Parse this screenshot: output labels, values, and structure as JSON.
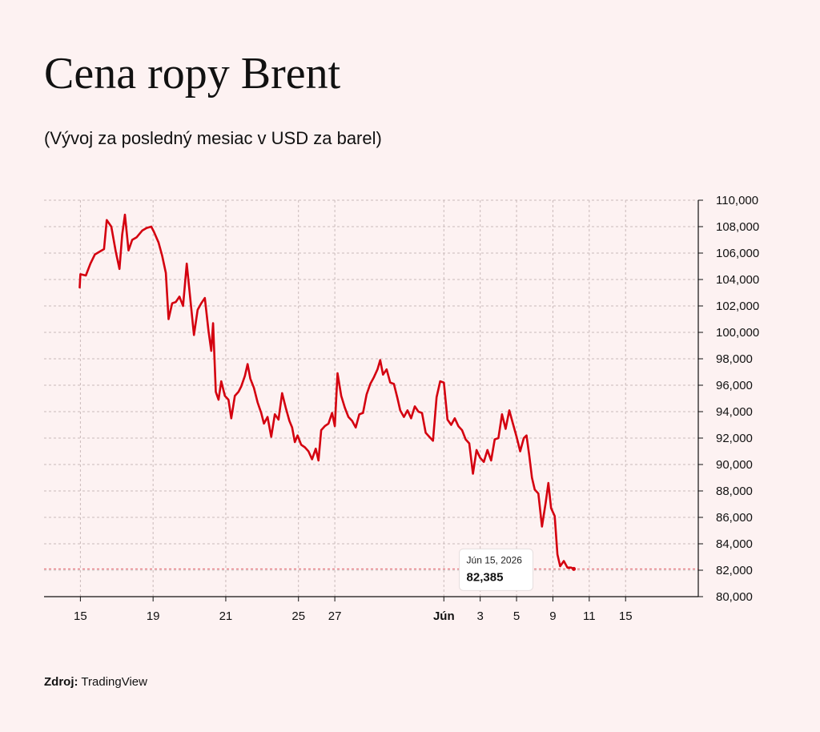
{
  "header": {
    "title": "Cena ropy Brent",
    "subtitle": "(Vývoj za posledný mesiac v USD za barel)"
  },
  "source": {
    "label": "Zdroj:",
    "value": "TradingView"
  },
  "tooltip": {
    "date": "Jún 15, 2026",
    "value": "82,385"
  },
  "colors": {
    "line": "#d4000f",
    "background": "#fdf2f2",
    "grid": "#c9b9b9"
  },
  "chart_data": {
    "type": "line",
    "title": "Cena ropy Brent",
    "subtitle": "(Vývoj za posledný mesiac v USD za barel)",
    "y_axis_position": "right",
    "ylim": [
      80000,
      110000
    ],
    "y_ticks": [
      80000,
      82000,
      84000,
      86000,
      88000,
      90000,
      92000,
      94000,
      96000,
      98000,
      100000,
      102000,
      104000,
      106000,
      108000,
      110000
    ],
    "y_tick_labels": [
      "80,000",
      "82,000",
      "84,000",
      "86,000",
      "88,000",
      "90,000",
      "92,000",
      "94,000",
      "96,000",
      "98,000",
      "100,000",
      "102,000",
      "104,000",
      "106,000",
      "108,000",
      "110,000"
    ],
    "xlim": [
      -1,
      35
    ],
    "x_ticks": [
      1,
      5,
      9,
      13,
      15,
      21,
      23,
      25,
      27,
      29,
      31
    ],
    "x_tick_labels": [
      "15",
      "19",
      "21",
      "25",
      "27",
      "Jún",
      "3",
      "5",
      "9",
      "11",
      "15"
    ],
    "grid": true,
    "series": [
      {
        "values": [
          [
            0.96,
            103400
          ],
          [
            1.0,
            104400
          ],
          [
            1.3,
            104300
          ],
          [
            1.55,
            105200
          ],
          [
            1.8,
            105900
          ],
          [
            2.05,
            106100
          ],
          [
            2.3,
            106300
          ],
          [
            2.45,
            108500
          ],
          [
            2.7,
            108000
          ],
          [
            2.95,
            106100
          ],
          [
            3.15,
            104800
          ],
          [
            3.3,
            107400
          ],
          [
            3.45,
            108900
          ],
          [
            3.65,
            106200
          ],
          [
            3.85,
            107000
          ],
          [
            4.1,
            107200
          ],
          [
            4.4,
            107700
          ],
          [
            4.65,
            107900
          ],
          [
            4.9,
            108000
          ],
          [
            5.05,
            107600
          ],
          [
            5.3,
            106800
          ],
          [
            5.5,
            105800
          ],
          [
            5.7,
            104500
          ],
          [
            5.85,
            101000
          ],
          [
            6.05,
            102200
          ],
          [
            6.25,
            102300
          ],
          [
            6.45,
            102700
          ],
          [
            6.65,
            102000
          ],
          [
            6.85,
            105200
          ],
          [
            7.05,
            102500
          ],
          [
            7.25,
            99800
          ],
          [
            7.45,
            101700
          ],
          [
            7.65,
            102200
          ],
          [
            7.85,
            102600
          ],
          [
            8.05,
            100100
          ],
          [
            8.2,
            98600
          ],
          [
            8.3,
            100700
          ],
          [
            8.45,
            95500
          ],
          [
            8.6,
            94900
          ],
          [
            8.75,
            96300
          ],
          [
            8.95,
            95200
          ],
          [
            9.15,
            94900
          ],
          [
            9.3,
            93500
          ],
          [
            9.5,
            95200
          ],
          [
            9.7,
            95500
          ],
          [
            9.85,
            95900
          ],
          [
            10.05,
            96700
          ],
          [
            10.2,
            97600
          ],
          [
            10.35,
            96500
          ],
          [
            10.55,
            95800
          ],
          [
            10.75,
            94700
          ],
          [
            10.95,
            93900
          ],
          [
            11.1,
            93100
          ],
          [
            11.3,
            93600
          ],
          [
            11.5,
            92100
          ],
          [
            11.7,
            93800
          ],
          [
            11.9,
            93400
          ],
          [
            12.1,
            95400
          ],
          [
            12.3,
            94300
          ],
          [
            12.5,
            93300
          ],
          [
            12.65,
            92800
          ],
          [
            12.8,
            91700
          ],
          [
            12.95,
            92200
          ],
          [
            13.15,
            91500
          ],
          [
            13.35,
            91300
          ],
          [
            13.55,
            91000
          ],
          [
            13.75,
            90400
          ],
          [
            13.95,
            91200
          ],
          [
            14.1,
            90300
          ],
          [
            14.25,
            92600
          ],
          [
            14.45,
            92900
          ],
          [
            14.65,
            93100
          ],
          [
            14.85,
            93900
          ],
          [
            15.0,
            92900
          ],
          [
            15.15,
            96900
          ],
          [
            15.35,
            95200
          ],
          [
            15.55,
            94300
          ],
          [
            15.75,
            93600
          ],
          [
            15.95,
            93300
          ],
          [
            16.15,
            92800
          ],
          [
            16.35,
            93800
          ],
          [
            16.55,
            93900
          ],
          [
            16.75,
            95300
          ],
          [
            16.95,
            96100
          ],
          [
            17.15,
            96600
          ],
          [
            17.35,
            97200
          ],
          [
            17.5,
            97900
          ],
          [
            17.65,
            96800
          ],
          [
            17.85,
            97200
          ],
          [
            18.05,
            96200
          ],
          [
            18.25,
            96100
          ],
          [
            18.45,
            95000
          ],
          [
            18.6,
            94100
          ],
          [
            18.8,
            93600
          ],
          [
            19.0,
            94100
          ],
          [
            19.2,
            93500
          ],
          [
            19.4,
            94400
          ],
          [
            19.6,
            94000
          ],
          [
            19.8,
            93900
          ],
          [
            20.0,
            92400
          ],
          [
            20.2,
            92100
          ],
          [
            20.4,
            91800
          ],
          [
            20.6,
            95100
          ],
          [
            20.8,
            96300
          ],
          [
            21.0,
            96200
          ],
          [
            21.2,
            93400
          ],
          [
            21.4,
            93000
          ],
          [
            21.6,
            93500
          ],
          [
            21.8,
            92900
          ],
          [
            22.0,
            92600
          ],
          [
            22.2,
            91900
          ],
          [
            22.4,
            91600
          ],
          [
            22.6,
            89300
          ],
          [
            22.8,
            91100
          ],
          [
            23.0,
            90500
          ],
          [
            23.2,
            90200
          ],
          [
            23.4,
            91100
          ],
          [
            23.6,
            90300
          ],
          [
            23.8,
            91900
          ],
          [
            24.0,
            92000
          ],
          [
            24.2,
            93800
          ],
          [
            24.4,
            92700
          ],
          [
            24.6,
            94100
          ],
          [
            24.8,
            93100
          ],
          [
            25.0,
            92100
          ],
          [
            25.2,
            91000
          ],
          [
            25.4,
            92000
          ],
          [
            25.55,
            92200
          ],
          [
            25.7,
            90700
          ],
          [
            25.85,
            89000
          ],
          [
            26.0,
            88100
          ],
          [
            26.2,
            87800
          ],
          [
            26.4,
            85300
          ],
          [
            26.6,
            87100
          ],
          [
            26.75,
            88600
          ],
          [
            26.9,
            86700
          ],
          [
            27.1,
            86100
          ],
          [
            27.25,
            83200
          ],
          [
            27.4,
            82300
          ],
          [
            27.6,
            82700
          ],
          [
            27.8,
            82200
          ],
          [
            28.0,
            82200
          ],
          [
            28.15,
            82100
          ]
        ]
      }
    ]
  }
}
